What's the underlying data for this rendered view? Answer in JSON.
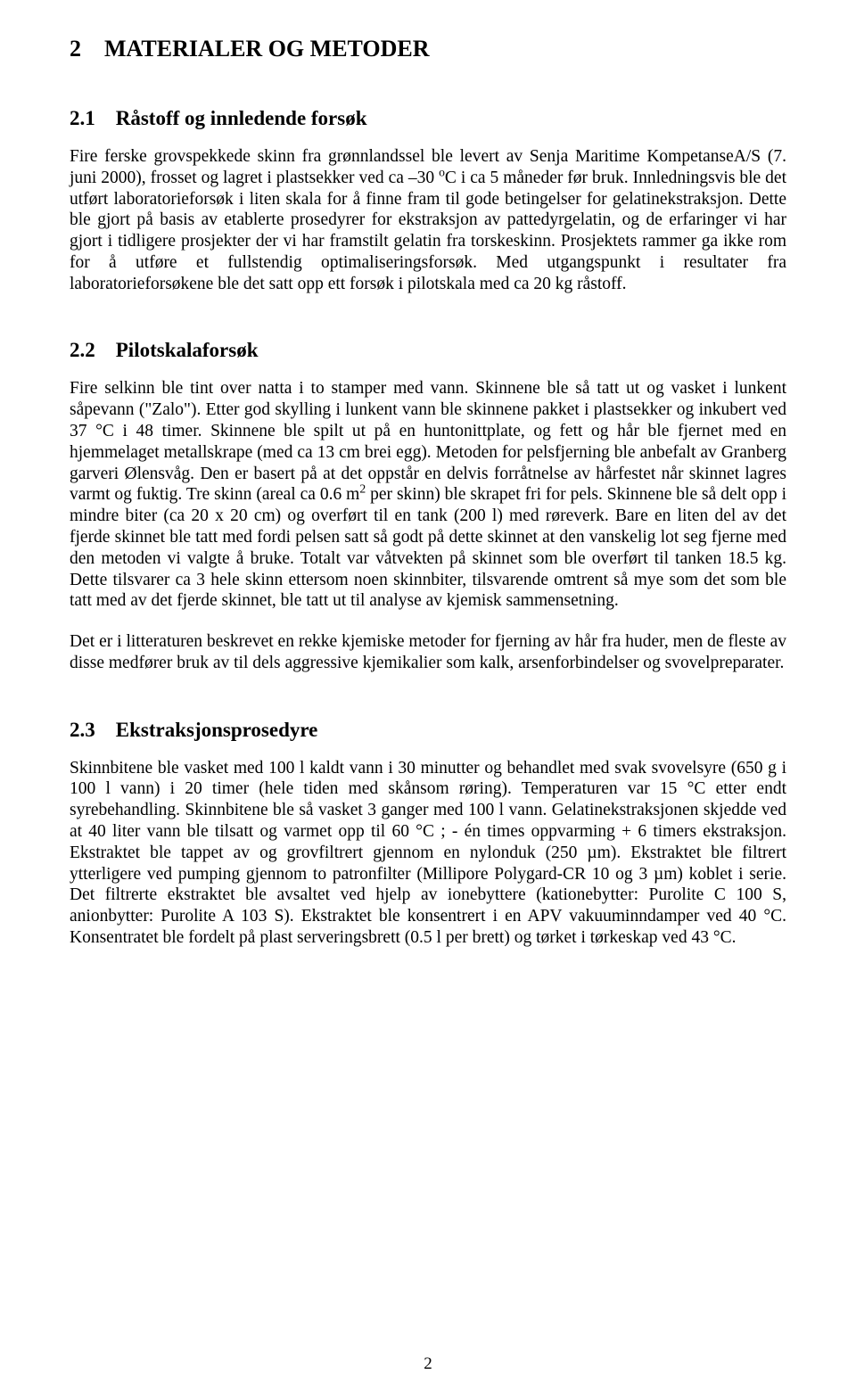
{
  "h1": "2 MATERIALER OG METODER",
  "sec21_title": "2.1 Råstoff og innledende forsøk",
  "sec21_p1_a": "Fire ferske grovspekkede skinn fra grønnlandssel ble levert av Senja Maritime KompetanseA/S (7. juni 2000), frosset og lagret i plastsekker ved ca –30 ",
  "sec21_p1_sup1": "o",
  "sec21_p1_b": "C i ca 5 måneder før bruk. Innledningsvis ble det utført laboratorieforsøk i liten skala for å finne fram til gode betingelser for gelatinekstraksjon. Dette ble gjort på basis av etablerte prosedyrer for ekstraksjon av pattedyrgelatin, og de erfaringer vi har gjort i tidligere prosjekter der vi har framstilt gelatin fra torskeskinn. Prosjektets rammer ga ikke rom for å utføre et fullstendig optimaliseringsforsøk. Med utgangspunkt i resultater fra laboratorieforsøkene ble det satt opp ett forsøk i pilotskala med ca 20 kg råstoff.",
  "sec22_title": "2.2 Pilotskalaforsøk",
  "sec22_p1_a": "Fire selkinn ble tint over natta i to stamper med vann. Skinnene ble så tatt ut og vasket i lunkent såpevann (\"Zalo\"). Etter god skylling i lunkent vann ble skinnene pakket i plastsekker og inkubert ved 37 °C i 48 timer. Skinnene ble spilt ut på en huntonittplate, og fett og hår ble fjernet med en hjemmelaget metallskrape (med ca 13 cm brei egg). Metoden for pelsfjerning ble anbefalt av Granberg garveri Ølensvåg. Den er basert på at det oppstår en delvis forråtnelse av hårfestet når skinnet lagres varmt og fuktig. Tre skinn (areal ca 0.6 m",
  "sec22_p1_sup": "2",
  "sec22_p1_b": " per skinn) ble skrapet fri for pels. Skinnene ble så delt opp i mindre biter (ca 20 x 20 cm) og overført til en tank (200 l) med røreverk. Bare en liten del av det fjerde skinnet ble tatt med fordi pelsen satt så godt på dette skinnet at den vanskelig lot seg fjerne med den metoden vi valgte å bruke. Totalt var våtvekten på skinnet som ble overført til tanken 18.5 kg. Dette tilsvarer ca 3 hele skinn ettersom noen skinnbiter, tilsvarende omtrent så mye som det som ble tatt med av det fjerde skinnet, ble tatt ut til analyse av kjemisk sammensetning.",
  "sec22_p2": "Det er i litteraturen beskrevet en rekke kjemiske metoder for fjerning av hår fra huder, men de fleste av disse medfører bruk av til dels aggressive kjemikalier som kalk, arsenforbindelser og svovelpreparater.",
  "sec23_title": "2.3 Ekstraksjonsprosedyre",
  "sec23_p1": "Skinnbitene ble vasket med 100 l kaldt vann i 30 minutter og behandlet med svak svovelsyre (650 g i 100 l vann)  i 20 timer (hele tiden med skånsom røring). Temperaturen var 15 °C etter endt syrebehandling. Skinnbitene ble så vasket 3 ganger med 100 l vann. Gelatinekstraksjonen skjedde ved at 40 liter vann ble tilsatt og varmet opp til 60 °C ; - én times oppvarming + 6 timers ekstraksjon. Ekstraktet ble tappet av og grovfiltrert gjennom en nylonduk (250 µm). Ekstraktet ble filtrert ytterligere ved pumping gjennom to patronfilter (Millipore Polygard-CR 10 og 3 µm) koblet i serie. Det filtrerte  ekstraktet ble avsaltet ved hjelp av ionebyttere (kationebytter: Purolite C 100 S, anionbytter: Purolite A 103 S). Ekstraktet ble konsentrert i en APV vakuuminndamper ved 40 °C. Konsentratet ble fordelt på plast serveringsbrett (0.5 l per brett) og tørket i tørkeskap ved 43 °C.",
  "page_number": "2"
}
